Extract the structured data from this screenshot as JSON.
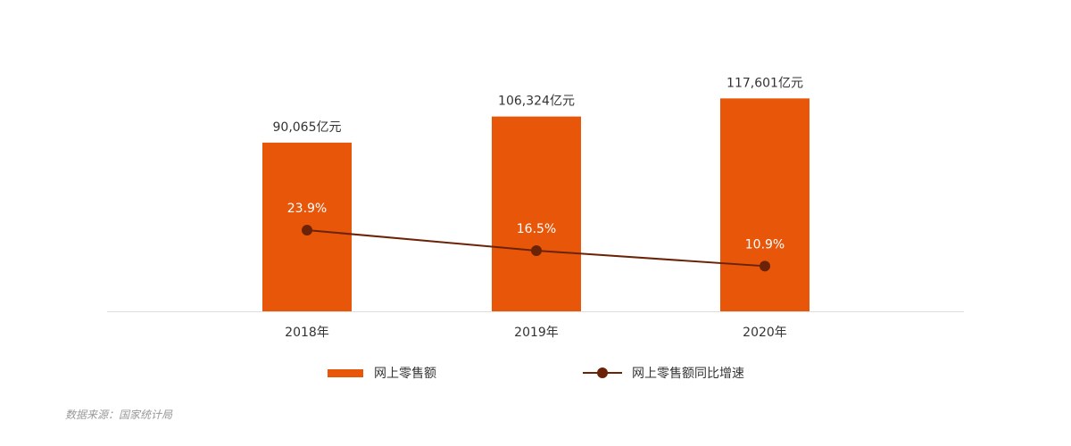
{
  "chart_data": {
    "type": "bar",
    "categories": [
      "2018年",
      "2019年",
      "2020年"
    ],
    "series": [
      {
        "name": "网上零售额",
        "type": "bar",
        "values": [
          90065,
          106324,
          117601
        ],
        "labels": [
          "90,065亿元",
          "106,324亿元",
          "117,601亿元"
        ],
        "color": "#E8560A"
      },
      {
        "name": "网上零售额同比增速",
        "type": "line",
        "values": [
          23.9,
          16.5,
          10.9
        ],
        "labels": [
          "23.9%",
          "16.5%",
          "10.9%"
        ],
        "color": "#6B2308"
      }
    ],
    "ylim": [
      -15000,
      145000
    ],
    "y2lim": [
      -5.45,
      87.45
    ],
    "legend": "bottom",
    "grid": false
  },
  "source": "数据来源：国家统计局"
}
